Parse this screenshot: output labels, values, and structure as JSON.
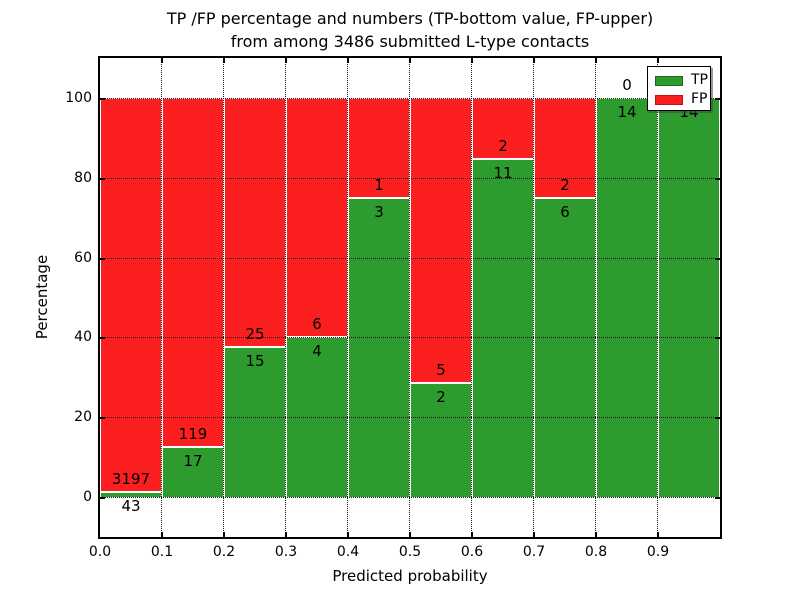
{
  "figure": {
    "title_line1": "TP /FP percentage and numbers (TP-bottom value, FP-upper)",
    "title_line2": "from among 3486 submitted L-type contacts",
    "xlabel": "Predicted probability",
    "ylabel": "Percentage"
  },
  "colors": {
    "tp_green": "#2d9b2d",
    "fp_red": "#fb1f1f",
    "tp_swatch_edge": "#1c6e1c",
    "fp_swatch_edge": "#c01212"
  },
  "legend": {
    "position": "upper right",
    "items": [
      {
        "label": "TP",
        "color": "#2d9b2d",
        "edge": "#1c6e1c"
      },
      {
        "label": "FP",
        "color": "#fb1f1f",
        "edge": "#c01212"
      }
    ]
  },
  "chart_data": {
    "type": "bar",
    "stacked": true,
    "normalized_to_percent": true,
    "title": "TP /FP percentage and numbers (TP-bottom value, FP-upper) from among 3486 submitted L-type contacts",
    "xlabel": "Predicted probability",
    "ylabel": "Percentage",
    "total_contacts": 3486,
    "grid": true,
    "grid_style": "dotted",
    "xlim": [
      0.0,
      1.0
    ],
    "ylim": [
      -10,
      110
    ],
    "bin_width": 0.1,
    "xtick_labels": [
      "0.0",
      "0.1",
      "0.2",
      "0.3",
      "0.4",
      "0.5",
      "0.6",
      "0.7",
      "0.8",
      "0.9"
    ],
    "yticks": [
      0,
      20,
      40,
      60,
      80,
      100
    ],
    "categories": [
      "0.0-0.1",
      "0.1-0.2",
      "0.2-0.3",
      "0.3-0.4",
      "0.4-0.5",
      "0.5-0.6",
      "0.6-0.7",
      "0.7-0.8",
      "0.8-0.9",
      "0.9-1.0"
    ],
    "series": [
      {
        "name": "TP",
        "color": "#2d9b2d",
        "counts": [
          43,
          17,
          15,
          4,
          3,
          2,
          11,
          6,
          14,
          14
        ]
      },
      {
        "name": "FP",
        "color": "#fb1f1f",
        "counts": [
          3197,
          119,
          25,
          6,
          1,
          5,
          2,
          2,
          0,
          0
        ]
      }
    ],
    "tp_percent": [
      1.33,
      12.5,
      37.5,
      40.0,
      75.0,
      28.57,
      84.62,
      75.0,
      100.0,
      100.0
    ],
    "bar_labels": {
      "fp": [
        "3197",
        "119",
        "25",
        "6",
        "1",
        "5",
        "2",
        "2",
        "0",
        ""
      ],
      "tp": [
        "43",
        "17",
        "15",
        "4",
        "3",
        "2",
        "11",
        "6",
        "14",
        "14"
      ]
    }
  }
}
